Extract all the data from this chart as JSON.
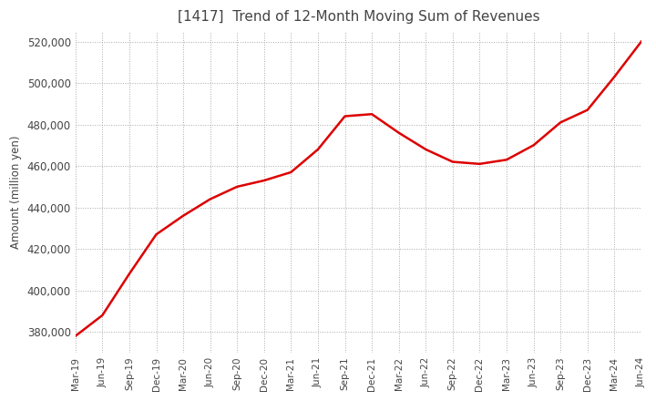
{
  "title": "[1417]  Trend of 12-Month Moving Sum of Revenues",
  "ylabel": "Amount (million yen)",
  "background_color": "#ffffff",
  "line_color": "#dd0000",
  "grid_color": "#aaaaaa",
  "title_color": "#444444",
  "ylim": [
    370000,
    525000
  ],
  "yticks": [
    380000,
    400000,
    420000,
    440000,
    460000,
    480000,
    500000,
    520000
  ],
  "x_labels": [
    "Mar-19",
    "Jun-19",
    "Sep-19",
    "Dec-19",
    "Mar-20",
    "Jun-20",
    "Sep-20",
    "Dec-20",
    "Mar-21",
    "Jun-21",
    "Sep-21",
    "Dec-21",
    "Mar-22",
    "Jun-22",
    "Sep-22",
    "Dec-22",
    "Mar-23",
    "Jun-23",
    "Sep-23",
    "Dec-23",
    "Mar-24",
    "Jun-24"
  ],
  "values": [
    378000,
    388000,
    408000,
    427000,
    436000,
    444000,
    450000,
    453000,
    457000,
    468000,
    484000,
    485000,
    476000,
    468000,
    462000,
    461000,
    463000,
    470000,
    481000,
    487000,
    503000,
    520000
  ],
  "figsize": [
    7.2,
    4.4
  ],
  "dpi": 100
}
